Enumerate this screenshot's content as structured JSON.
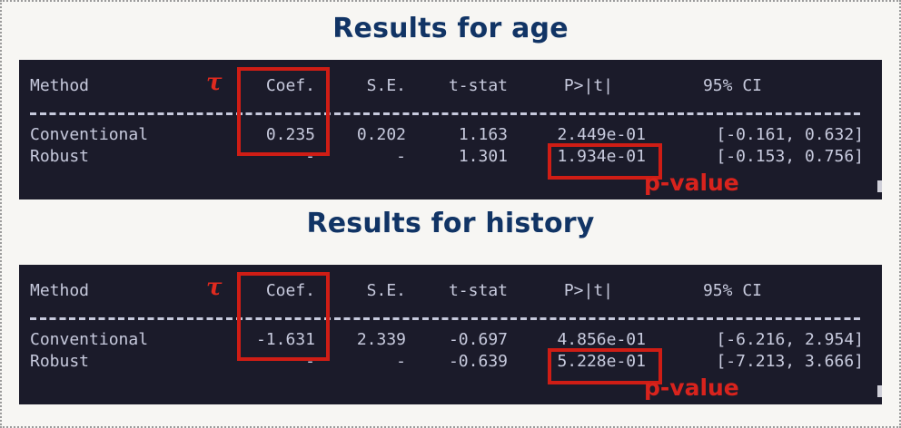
{
  "figure": {
    "annotations": {
      "tau": "τ",
      "p_value_label": "p-value"
    },
    "colors": {
      "page_background": "#f7f6f3",
      "dotted_border": "#9b9b9b",
      "terminal_background": "#1b1b2a",
      "terminal_text": "#c7cadd",
      "title_navy": "#113465",
      "annotation_red": "#cf1d15"
    },
    "sections": [
      {
        "title": "Results for age",
        "table": {
          "headers": [
            "Method",
            "Coef.",
            "S.E.",
            "t-stat",
            "P>|t|",
            "95% CI"
          ],
          "rows": [
            [
              "Conventional",
              "0.235",
              "0.202",
              "1.163",
              "2.449e-01",
              "[-0.161, 0.632]"
            ],
            [
              "Robust",
              "-",
              "-",
              "1.301",
              "1.934e-01",
              "[-0.153, 0.756]"
            ]
          ]
        }
      },
      {
        "title": "Results for history",
        "table": {
          "headers": [
            "Method",
            "Coef.",
            "S.E.",
            "t-stat",
            "P>|t|",
            "95% CI"
          ],
          "rows": [
            [
              "Conventional",
              "-1.631",
              "2.339",
              "-0.697",
              "4.856e-01",
              "[-6.216, 2.954]"
            ],
            [
              "Robust",
              "-",
              "-",
              "-0.639",
              "5.228e-01",
              "[-7.213, 3.666]"
            ]
          ]
        }
      }
    ]
  }
}
